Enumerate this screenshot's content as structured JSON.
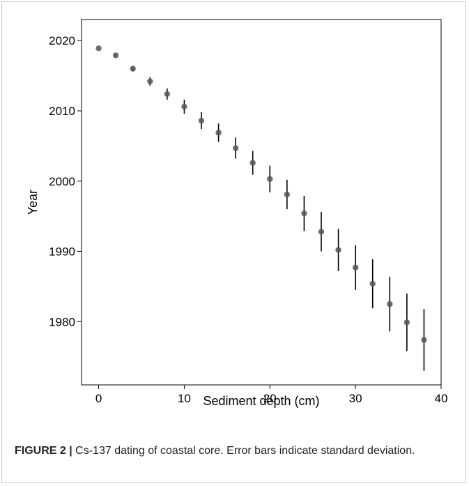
{
  "chart_data": {
    "type": "scatter",
    "title": "",
    "xlabel": "Sediment depth (cm)",
    "ylabel": "Year",
    "xlim": [
      -2,
      40
    ],
    "ylim": [
      1971,
      2023
    ],
    "xticks": [
      0,
      10,
      20,
      30,
      40
    ],
    "yticks": [
      1980,
      1990,
      2000,
      2010,
      2020
    ],
    "grid": false,
    "legend": "none",
    "marker_color": "#555555",
    "errorbar_color": "#000000",
    "points": [
      {
        "x": 0,
        "y": 2018.9,
        "err": 0.0
      },
      {
        "x": 2,
        "y": 2017.9,
        "err": 0.2
      },
      {
        "x": 4,
        "y": 2016.0,
        "err": 0.4
      },
      {
        "x": 6,
        "y": 2014.2,
        "err": 0.6
      },
      {
        "x": 8,
        "y": 2012.4,
        "err": 0.8
      },
      {
        "x": 10,
        "y": 2010.6,
        "err": 1.0
      },
      {
        "x": 12,
        "y": 2008.6,
        "err": 1.2
      },
      {
        "x": 14,
        "y": 2006.9,
        "err": 1.3
      },
      {
        "x": 16,
        "y": 2004.7,
        "err": 1.5
      },
      {
        "x": 18,
        "y": 2002.6,
        "err": 1.7
      },
      {
        "x": 20,
        "y": 2000.3,
        "err": 1.9
      },
      {
        "x": 22,
        "y": 1998.1,
        "err": 2.1
      },
      {
        "x": 24,
        "y": 1995.4,
        "err": 2.5
      },
      {
        "x": 26,
        "y": 1992.8,
        "err": 2.8
      },
      {
        "x": 28,
        "y": 1990.2,
        "err": 3.0
      },
      {
        "x": 30,
        "y": 1987.7,
        "err": 3.2
      },
      {
        "x": 32,
        "y": 1985.4,
        "err": 3.5
      },
      {
        "x": 34,
        "y": 1982.5,
        "err": 3.9
      },
      {
        "x": 36,
        "y": 1979.9,
        "err": 4.1
      },
      {
        "x": 38,
        "y": 1977.4,
        "err": 4.4
      }
    ]
  },
  "caption": {
    "lead": "FIGURE 2 |",
    "text": " Cs-137 dating of coastal core. Error bars indicate standard deviation."
  }
}
